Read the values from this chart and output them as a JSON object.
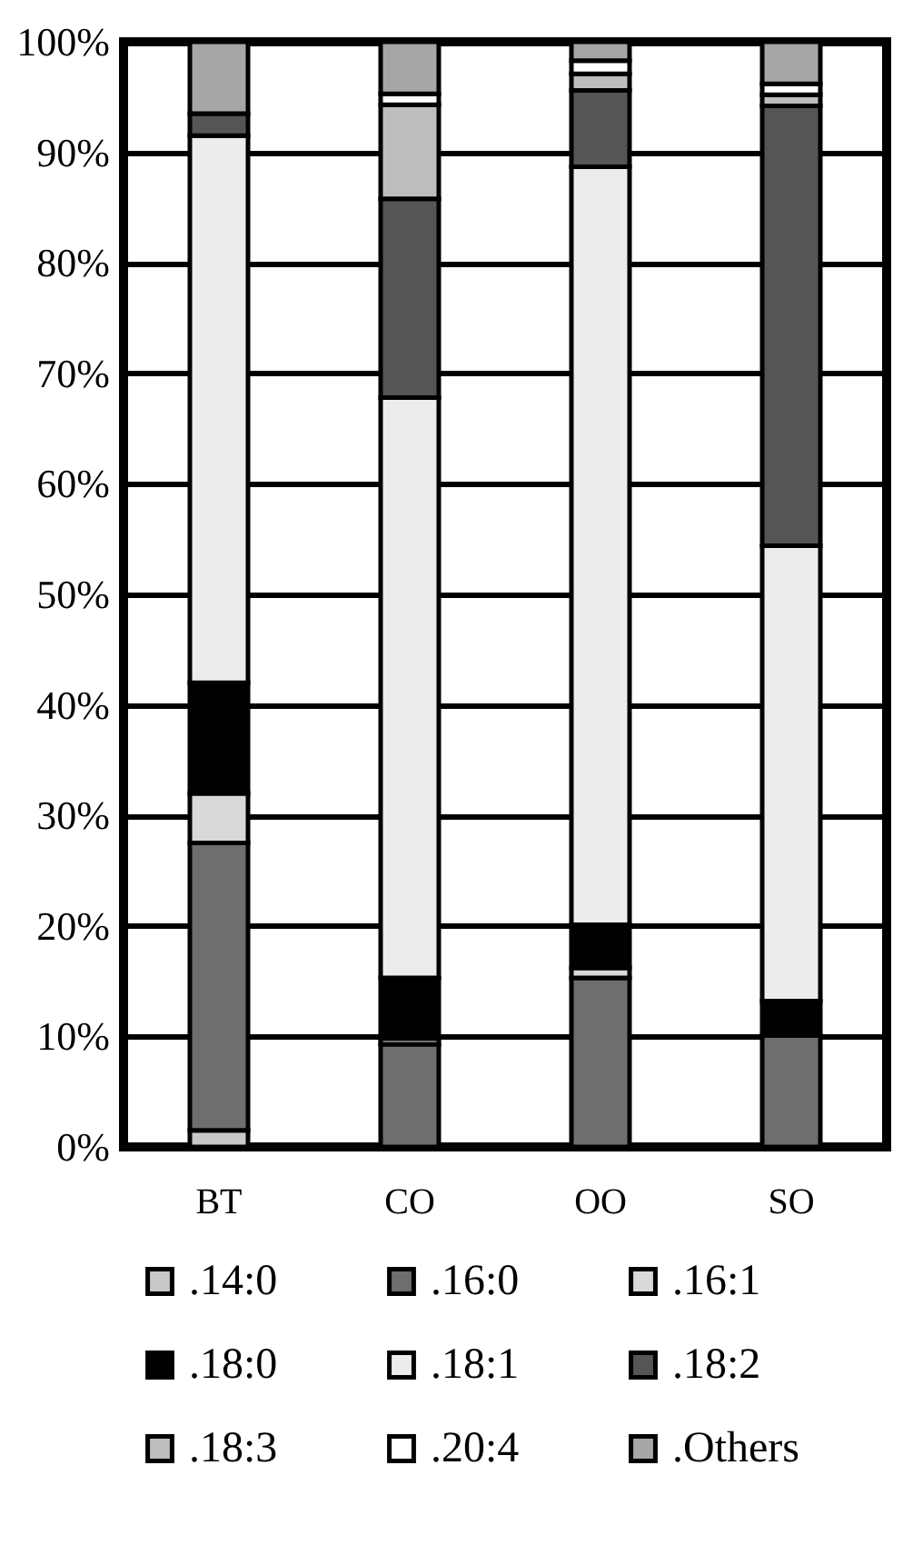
{
  "chart_data": {
    "type": "bar",
    "stacked": true,
    "categories": [
      "BT",
      "CO",
      "OO",
      "SO"
    ],
    "ylim": [
      0,
      100
    ],
    "yticks": [
      {
        "value": 0,
        "label": "0%"
      },
      {
        "value": 10,
        "label": "10%"
      },
      {
        "value": 20,
        "label": "20%"
      },
      {
        "value": 30,
        "label": "30%"
      },
      {
        "value": 40,
        "label": "40%"
      },
      {
        "value": 50,
        "label": "50%"
      },
      {
        "value": 60,
        "label": "60%"
      },
      {
        "value": 70,
        "label": "70%"
      },
      {
        "value": 80,
        "label": "80%"
      },
      {
        "value": 90,
        "label": "90%"
      },
      {
        "value": 100,
        "label": "100%"
      }
    ],
    "grid": "y",
    "legend": "bottom",
    "series": [
      {
        "name": ".14:0",
        "color": "#c8c8c8",
        "values": [
          1.5,
          null,
          null,
          null
        ]
      },
      {
        "name": ".16:0",
        "color": "#6e6e6e",
        "values": [
          26,
          9.3,
          15.3,
          10.1
        ]
      },
      {
        "name": ".16:1",
        "color": "#d9d9d9",
        "values": [
          4.5,
          0.5,
          0.9,
          null
        ]
      },
      {
        "name": ".18:0",
        "color": "#000000",
        "values": [
          10,
          5.5,
          3.9,
          3.1
        ]
      },
      {
        "name": ".18:1",
        "color": "#ececec",
        "values": [
          49.5,
          52.5,
          68.6,
          41.2
        ]
      },
      {
        "name": ".18:2",
        "color": "#555555",
        "values": [
          2,
          18,
          6.9,
          39.8
        ]
      },
      {
        "name": ".18:3",
        "color": "#bdbdbd",
        "values": [
          null,
          8.5,
          1.5,
          1
        ]
      },
      {
        "name": ".20:4",
        "color": "#ffffff",
        "values": [
          null,
          1,
          1.2,
          1
        ]
      },
      {
        "name": ".Others",
        "color": "#a6a6a6",
        "values": [
          6.5,
          4.7,
          1.7,
          3.8
        ]
      }
    ]
  }
}
